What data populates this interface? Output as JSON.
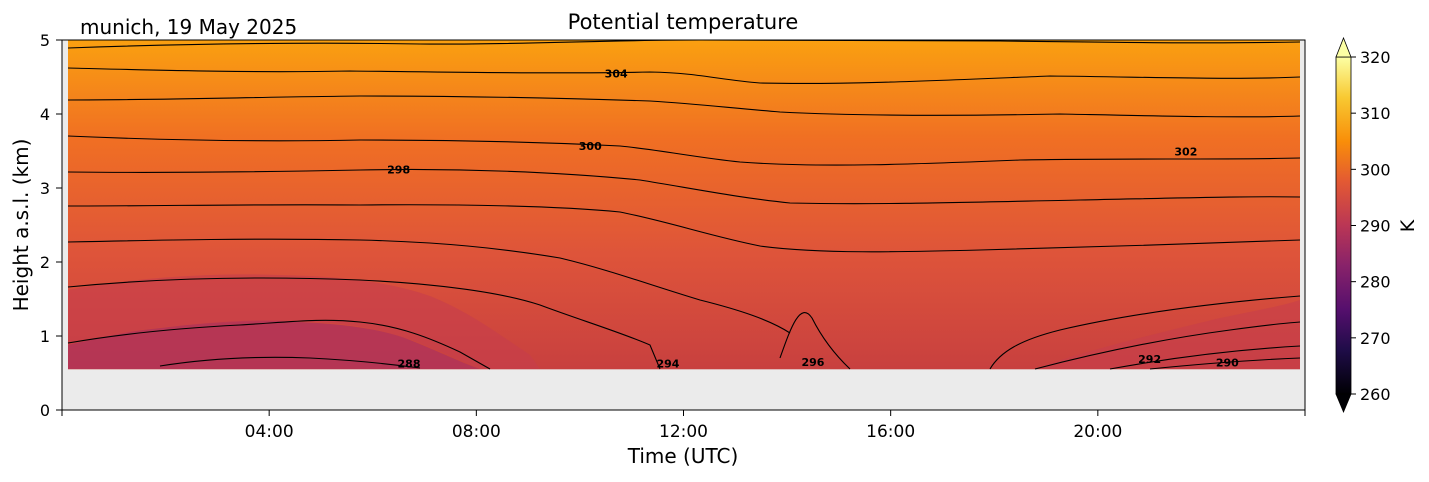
{
  "chart_data": {
    "type": "heatmap",
    "title": "Potential temperature",
    "subtitle": "munich, 19 May 2025",
    "xlabel": "Time (UTC)",
    "ylabel": "Height a.s.l. (km)",
    "x_range_hours": [
      0,
      24
    ],
    "x_ticks": [
      "04:00",
      "08:00",
      "12:00",
      "16:00",
      "20:00"
    ],
    "x_tick_hours": [
      4,
      8,
      12,
      16,
      20
    ],
    "ylim": [
      0,
      5
    ],
    "y_ticks": [
      0,
      1,
      2,
      3,
      4,
      5
    ],
    "data_bottom_km": 0.55,
    "colorbar": {
      "label": "K",
      "min": 260,
      "max": 320,
      "ticks": [
        260,
        270,
        280,
        290,
        300,
        310,
        320
      ],
      "colormap": "inferno",
      "extend": "both"
    },
    "contour_levels": [
      288,
      290,
      292,
      294,
      296,
      298,
      300,
      302,
      304
    ],
    "contour_labels": [
      {
        "text": "288",
        "hour": 6.7,
        "km": 0.63
      },
      {
        "text": "294",
        "hour": 11.7,
        "km": 0.63
      },
      {
        "text": "296",
        "hour": 14.5,
        "km": 0.65
      },
      {
        "text": "292",
        "hour": 21.0,
        "km": 0.69
      },
      {
        "text": "290",
        "hour": 22.5,
        "km": 0.64
      },
      {
        "text": "298",
        "hour": 6.5,
        "km": 3.25
      },
      {
        "text": "300",
        "hour": 10.2,
        "km": 3.57
      },
      {
        "text": "302",
        "hour": 21.7,
        "km": 3.49
      },
      {
        "text": "304",
        "hour": 10.7,
        "km": 4.55
      }
    ]
  }
}
